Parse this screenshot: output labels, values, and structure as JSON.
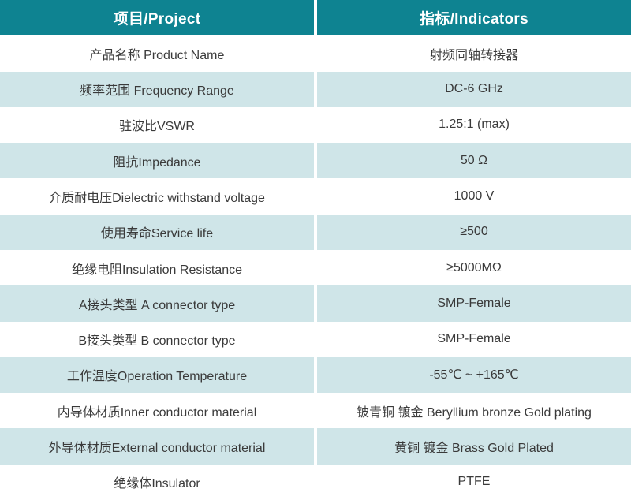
{
  "header": {
    "project": "项目/Project",
    "indicators": "指标/Indicators"
  },
  "colors": {
    "header_bg": "#0e8391",
    "header_text": "#ffffff",
    "alt_row_bg": "#cfe5e8",
    "row_bg": "#ffffff",
    "body_text": "#3a3a3a"
  },
  "rows": [
    {
      "project": "产品名称 Product Name",
      "indicator": "射频同轴转接器"
    },
    {
      "project": "频率范围 Frequency Range",
      "indicator": "DC-6 GHz"
    },
    {
      "project": "驻波比VSWR",
      "indicator": "1.25:1 (max)"
    },
    {
      "project": "阻抗Impedance",
      "indicator": "50 Ω"
    },
    {
      "project": "介质耐电压Dielectric withstand voltage",
      "indicator": "1000 V"
    },
    {
      "project": "使用寿命Service life",
      "indicator": "≥500"
    },
    {
      "project": "绝缘电阻Insulation Resistance",
      "indicator": "≥5000MΩ"
    },
    {
      "project": "A接头类型 A connector type",
      "indicator": "SMP-Female"
    },
    {
      "project": "B接头类型 B connector type",
      "indicator": "SMP-Female"
    },
    {
      "project": "工作温度Operation Temperature",
      "indicator": "-55℃ ~ +165℃"
    },
    {
      "project": "内导体材质Inner conductor material",
      "indicator": "铍青铜 镀金 Beryllium bronze Gold plating"
    },
    {
      "project": "外导体材质External conductor material",
      "indicator": "黄铜 镀金 Brass Gold Plated"
    },
    {
      "project": "绝缘体Insulator",
      "indicator": "PTFE"
    }
  ]
}
